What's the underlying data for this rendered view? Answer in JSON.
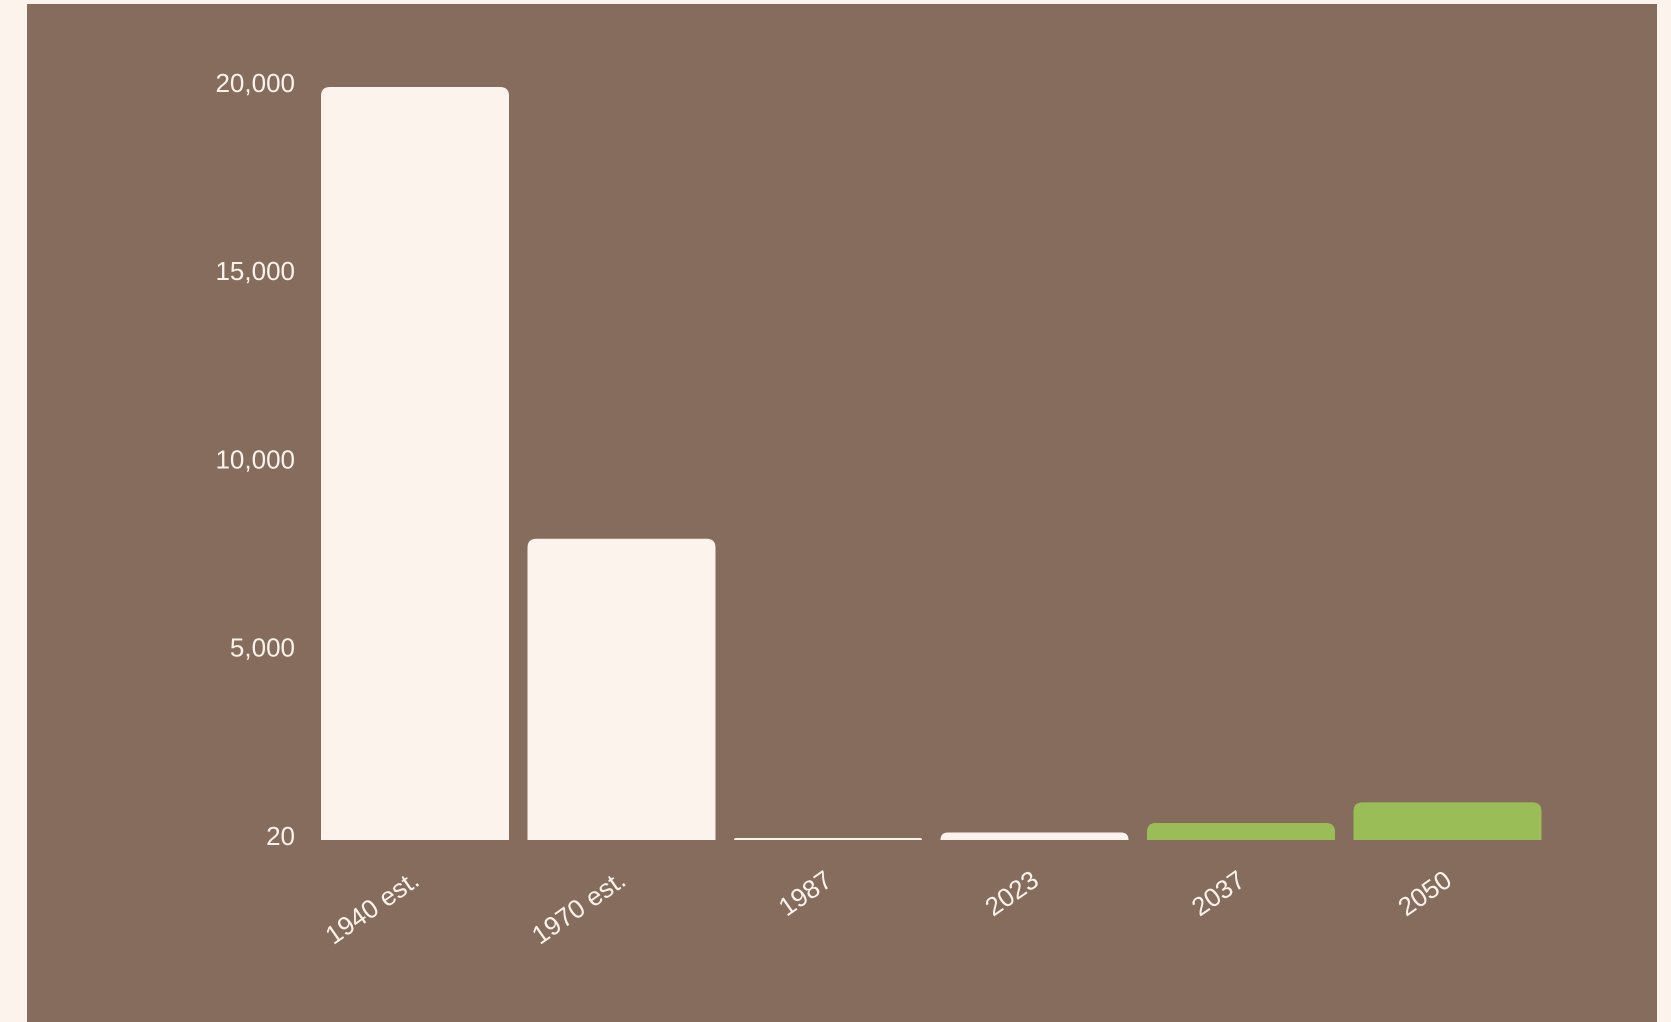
{
  "chart_data": {
    "type": "bar",
    "categories": [
      "1940 est.",
      "1970 est.",
      "1987",
      "2023",
      "2037",
      "2050"
    ],
    "values": [
      20000,
      8000,
      27,
      200,
      450,
      1000
    ],
    "y_ticks": [
      {
        "value": 20,
        "label": "20"
      },
      {
        "value": 5000,
        "label": "5,000"
      },
      {
        "value": 10000,
        "label": "10,000"
      },
      {
        "value": 15000,
        "label": "15,000"
      },
      {
        "value": 20000,
        "label": "20,000"
      }
    ],
    "ylim": [
      0,
      20000
    ],
    "bar_colors": [
      "#fbf3ec",
      "#fbf3ec",
      "#fbf3ec",
      "#fbf3ec",
      "#9bbd58",
      "#9bbd58"
    ],
    "grid": false,
    "title": "",
    "xlabel": "",
    "ylabel": ""
  },
  "colors": {
    "page_background": "#fbf3ec",
    "panel_background": "#866c5c",
    "text": "#fbf3ec",
    "bar_default": "#fbf3ec",
    "bar_projection": "#9bbd58"
  }
}
